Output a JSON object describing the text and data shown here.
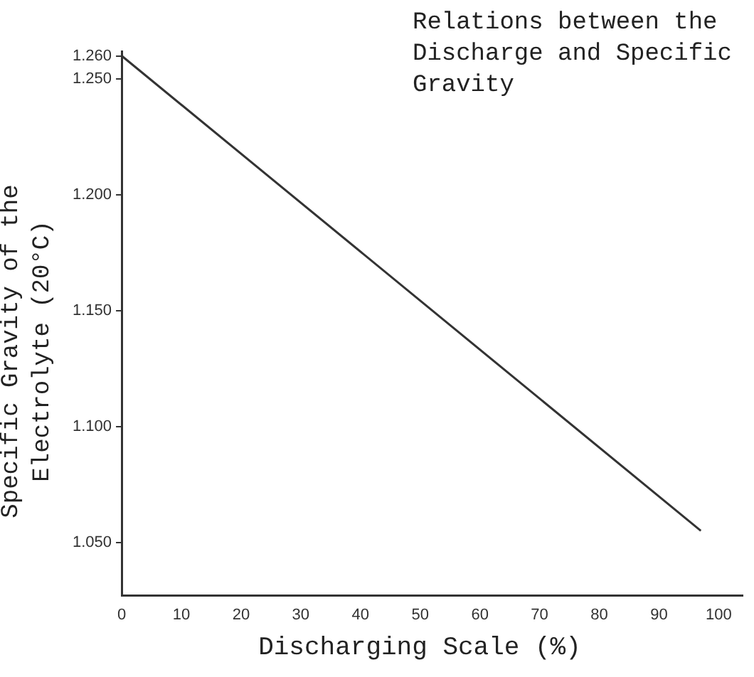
{
  "chart_data": {
    "type": "line",
    "title": "Relations between the\nDischarge and Specific\nGravity",
    "xlabel": "Discharging Scale (%)",
    "ylabel": "Specific Gravity of the\nElectrolyte (20°C)",
    "x": [
      0,
      97
    ],
    "series": [
      {
        "color": "#333333",
        "values": [
          1.26,
          1.055
        ]
      }
    ],
    "xlim": [
      0,
      104
    ],
    "xticks": [
      0,
      10,
      20,
      30,
      40,
      50,
      60,
      70,
      80,
      90,
      100
    ],
    "ylim": [
      1.027,
      1.262
    ],
    "yticks": [
      {
        "value": 1.05,
        "label": "1.050"
      },
      {
        "value": 1.1,
        "label": "1.100"
      },
      {
        "value": 1.15,
        "label": "1.150"
      },
      {
        "value": 1.2,
        "label": "1.200"
      },
      {
        "value": 1.25,
        "label": "1.250"
      },
      {
        "value": 1.26,
        "label": "1.260"
      }
    ],
    "grid": false,
    "legend": false,
    "marker": "none",
    "line_style": "solid"
  }
}
